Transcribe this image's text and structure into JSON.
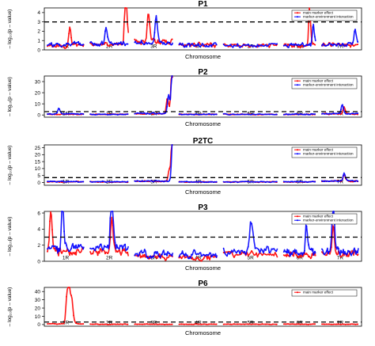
{
  "figure": {
    "ylabel": "– log₁₀(p – value)",
    "xlabel": "Chromosome",
    "colors": {
      "main": "#ff0000",
      "interaction": "#0000ff",
      "threshold": "#000000",
      "axis": "#000000"
    }
  },
  "chart_data": [
    {
      "type": "line",
      "title": "P1",
      "xlabel": "Chromosome",
      "ylabel": "– log₁₀(p – value)",
      "ylim": [
        0,
        4.5
      ],
      "yticks": [
        "0",
        "1",
        "2",
        "3",
        "4"
      ],
      "categories": [
        "1R",
        "2R",
        "3R",
        "4R",
        "5R",
        "6R",
        "7R"
      ],
      "threshold": 3.0,
      "legend": [
        "main marker effect",
        "marker-environment interaction"
      ],
      "legend_position": "top-right",
      "series": [
        {
          "name": "main marker effect",
          "color": "#ff0000",
          "base": [
            0.45,
            0.6,
            0.9,
            0.55,
            0.5,
            0.5,
            0.55
          ],
          "noise": 0.45,
          "peaks": [
            [
              0.92,
              1,
              4.5
            ],
            [
              0.35,
              2,
              2.3
            ],
            [
              0.8,
              5,
              2.8
            ],
            [
              0.6,
              0,
              1.4
            ]
          ]
        },
        {
          "name": "marker-environment interaction",
          "color": "#0000ff",
          "base": [
            0.55,
            0.65,
            0.8,
            0.5,
            0.5,
            0.5,
            0.5
          ],
          "noise": 0.4,
          "peaks": [
            [
              0.55,
              2,
              2.0
            ],
            [
              0.92,
              5,
              1.7
            ],
            [
              0.9,
              6,
              1.4
            ],
            [
              0.4,
              1,
              1.2
            ]
          ]
        }
      ]
    },
    {
      "type": "line",
      "title": "P2",
      "xlabel": "Chromosome",
      "ylabel": "– log₁₀(p – value)",
      "ylim": [
        -2,
        35
      ],
      "yticks": [
        "0",
        "10",
        "20",
        "30"
      ],
      "categories": [
        "1R",
        "2R",
        "3R",
        "4R",
        "5R",
        "6R",
        "7R"
      ],
      "threshold": 3.0,
      "legend": [
        "main marker effect",
        "marker-environment interaction"
      ],
      "legend_position": "top-right",
      "series": [
        {
          "name": "main marker effect",
          "color": "#ff0000",
          "base": [
            0.6,
            0.5,
            1.0,
            0.5,
            0.5,
            0.5,
            1.0
          ],
          "noise": 1.0,
          "peaks": [
            [
              0.97,
              2,
              29
            ],
            [
              0.85,
              2,
              10
            ],
            [
              0.6,
              6,
              4.5
            ]
          ]
        },
        {
          "name": "marker-environment interaction",
          "color": "#0000ff",
          "base": [
            0.8,
            0.6,
            1.4,
            0.6,
            0.6,
            0.6,
            1.2
          ],
          "noise": 1.2,
          "peaks": [
            [
              0.98,
              2,
              31
            ],
            [
              0.88,
              2,
              12
            ],
            [
              0.55,
              6,
              5.5
            ],
            [
              0.3,
              0,
              3.5
            ]
          ]
        }
      ]
    },
    {
      "type": "line",
      "title": "P2TC",
      "xlabel": "Chromosome",
      "ylabel": "– log₁₀(p – value)",
      "ylim": [
        -2,
        27
      ],
      "yticks": [
        "0",
        "5",
        "10",
        "15",
        "20",
        "25"
      ],
      "categories": [
        "1R",
        "2R",
        "3R",
        "4R",
        "5R",
        "6R",
        "7R"
      ],
      "threshold": 3.5,
      "legend": [
        "main marker effect",
        "marker-environment interaction"
      ],
      "legend_position": "top-right",
      "series": [
        {
          "name": "main marker effect",
          "color": "#ff0000",
          "base": [
            0.5,
            0.4,
            0.8,
            0.4,
            0.4,
            0.4,
            0.9
          ],
          "noise": 0.8,
          "peaks": [
            [
              0.98,
              2,
              25.5
            ],
            [
              0.9,
              2,
              6
            ],
            [
              0.6,
              6,
              3.5
            ]
          ]
        },
        {
          "name": "marker-environment interaction",
          "color": "#0000ff",
          "base": [
            0.6,
            0.5,
            1.0,
            0.5,
            0.5,
            0.5,
            1.0
          ],
          "noise": 0.9,
          "peaks": [
            [
              0.99,
              2,
              24
            ],
            [
              0.6,
              6,
              4.0
            ]
          ]
        }
      ]
    },
    {
      "type": "line",
      "title": "P3",
      "xlabel": "Chromosome",
      "ylabel": "– log₁₀(p – value)",
      "ylim": [
        0,
        6.2
      ],
      "yticks": [
        "0",
        "2",
        "4",
        "6"
      ],
      "categories": [
        "1R",
        "2R",
        "3R",
        "4R",
        "5R",
        "6R",
        "7R"
      ],
      "threshold": 3.0,
      "legend": [
        "main marker effect",
        "marker-environment interaction"
      ],
      "legend_position": "top-right",
      "series": [
        {
          "name": "main marker effect",
          "color": "#ff0000",
          "base": [
            1.3,
            1.2,
            0.6,
            0.5,
            0.8,
            0.7,
            0.9
          ],
          "noise": 0.9,
          "peaks": [
            [
              0.08,
              0,
              3.3
            ],
            [
              0.55,
              1,
              3.0
            ],
            [
              0.3,
              6,
              2.6
            ]
          ]
        },
        {
          "name": "marker-environment interaction",
          "color": "#0000ff",
          "base": [
            1.6,
            1.6,
            0.9,
            0.8,
            1.2,
            1.1,
            1.3
          ],
          "noise": 1.1,
          "peaks": [
            [
              0.4,
              0,
              4.4
            ],
            [
              0.55,
              1,
              5.9
            ],
            [
              0.3,
              6,
              4.9
            ],
            [
              0.5,
              4,
              2.6
            ],
            [
              0.7,
              5,
              2.5
            ]
          ]
        }
      ]
    },
    {
      "type": "line",
      "title": "P6",
      "xlabel": "Chromosome",
      "ylabel": "– log₁₀(p – value)",
      "ylim": [
        -2,
        45
      ],
      "yticks": [
        "0",
        "10",
        "20",
        "30",
        "40"
      ],
      "categories": [
        "1R",
        "2R",
        "3R",
        "4R",
        "5R",
        "6R",
        "7R"
      ],
      "threshold": 3.0,
      "legend": [
        "main marker effect"
      ],
      "legend_position": "top-right",
      "series": [
        {
          "name": "main marker effect",
          "color": "#ff0000",
          "base": [
            0.8,
            0.4,
            0.4,
            0.4,
            0.4,
            0.4,
            0.4
          ],
          "noise": 0.8,
          "peaks": [
            [
              0.58,
              0,
              40
            ],
            [
              0.52,
              0,
              22
            ],
            [
              0.66,
              0,
              18
            ]
          ]
        }
      ]
    }
  ]
}
